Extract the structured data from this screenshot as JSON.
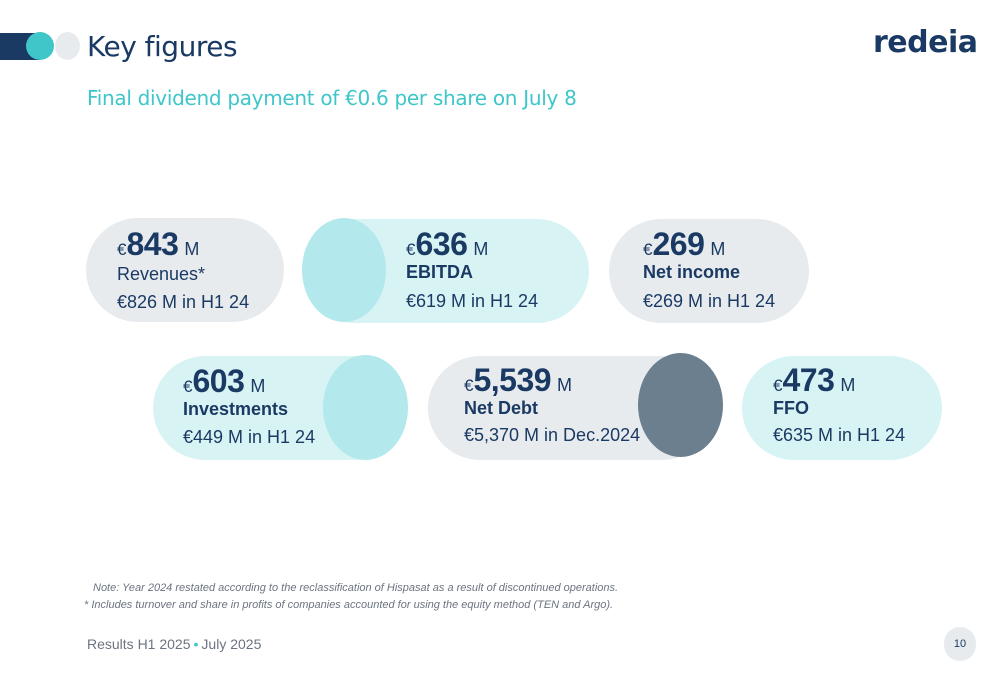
{
  "header": {
    "title": "Key figures",
    "subtitle": "Final dividend payment of €0.6 per share on July 8",
    "logo_text": "redeia"
  },
  "kpis": [
    {
      "currency": "€",
      "value": "843",
      "unit": "M",
      "label": "Revenues*",
      "previous": "€826 M in H1 24"
    },
    {
      "currency": "€",
      "value": "636",
      "unit": "M",
      "label": "EBITDA",
      "previous": "€619 M in H1 24"
    },
    {
      "currency": "€",
      "value": "269",
      "unit": "M",
      "label": "Net income",
      "previous": "€269 M in H1 24"
    },
    {
      "currency": "€",
      "value": "603",
      "unit": "M",
      "label": "Investments",
      "previous": "€449 M in H1 24"
    },
    {
      "currency": "€",
      "value": "5,539",
      "unit": "M",
      "label": "Net Debt",
      "previous": "€5,370 M in Dec.2024"
    },
    {
      "currency": "€",
      "value": "473",
      "unit": "M",
      "label": "FFO",
      "previous": "€635 M in H1 24"
    }
  ],
  "notes": {
    "line1": "Note: Year 2024 restated according to the reclassification of Hispasat as a result of discontinued operations.",
    "line2": "* Includes turnover and share in profits of companies accounted for using the equity method (TEN and Argo)."
  },
  "footer": {
    "text_left": "Results H1 2025",
    "separator": "•",
    "text_right": "July 2025",
    "page_number": "10"
  },
  "colors": {
    "navy": "#1a3a64",
    "teal": "#3ec6c9",
    "light_gray": "#e8ebee",
    "light_cyan": "#d8f3f4",
    "cyan_blob": "#b3e9ec",
    "slate_blob": "#6b7f8e"
  }
}
